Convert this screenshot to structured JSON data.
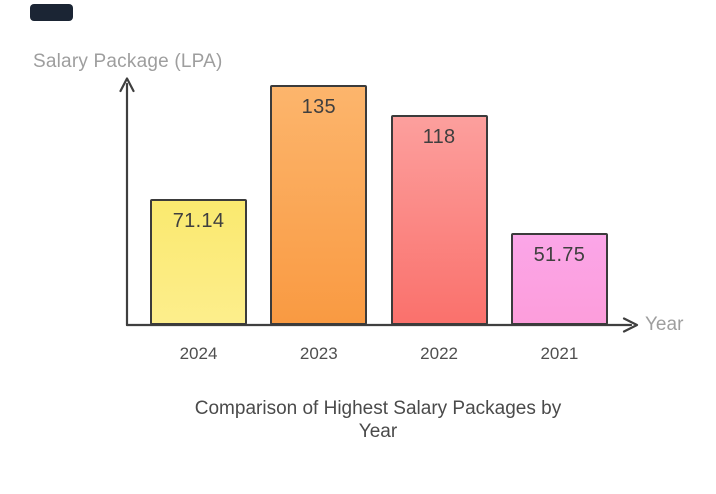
{
  "chart_data": {
    "type": "bar",
    "title": "Comparison of Highest Salary Packages by Year",
    "xlabel": "Year",
    "ylabel": "Salary Package (LPA)",
    "categories": [
      "2024",
      "2023",
      "2022",
      "2021"
    ],
    "values": [
      71.14,
      135,
      118,
      51.75
    ],
    "value_labels": [
      "71.14",
      "135",
      "118",
      "51.75"
    ],
    "ylim": [
      0,
      135
    ],
    "grid": false,
    "legend": false,
    "bar_colors": [
      {
        "top": "#fae96f",
        "bottom": "#fdee8c"
      },
      {
        "top": "#fcb56c",
        "bottom": "#f99a42"
      },
      {
        "top": "#fc9f9d",
        "bottom": "#fa716c"
      },
      {
        "top": "#fba6e8",
        "bottom": "#fc9ddb"
      }
    ]
  },
  "colors": {
    "axis": "#3f3f3f",
    "bar_border": "#3b3b3b",
    "axis_label_text": "#9e9e9e",
    "tick_text": "#4f4f4f",
    "title_text": "#4a4a4a",
    "corner_chip": "#1b2534",
    "background": "#ffffff"
  }
}
